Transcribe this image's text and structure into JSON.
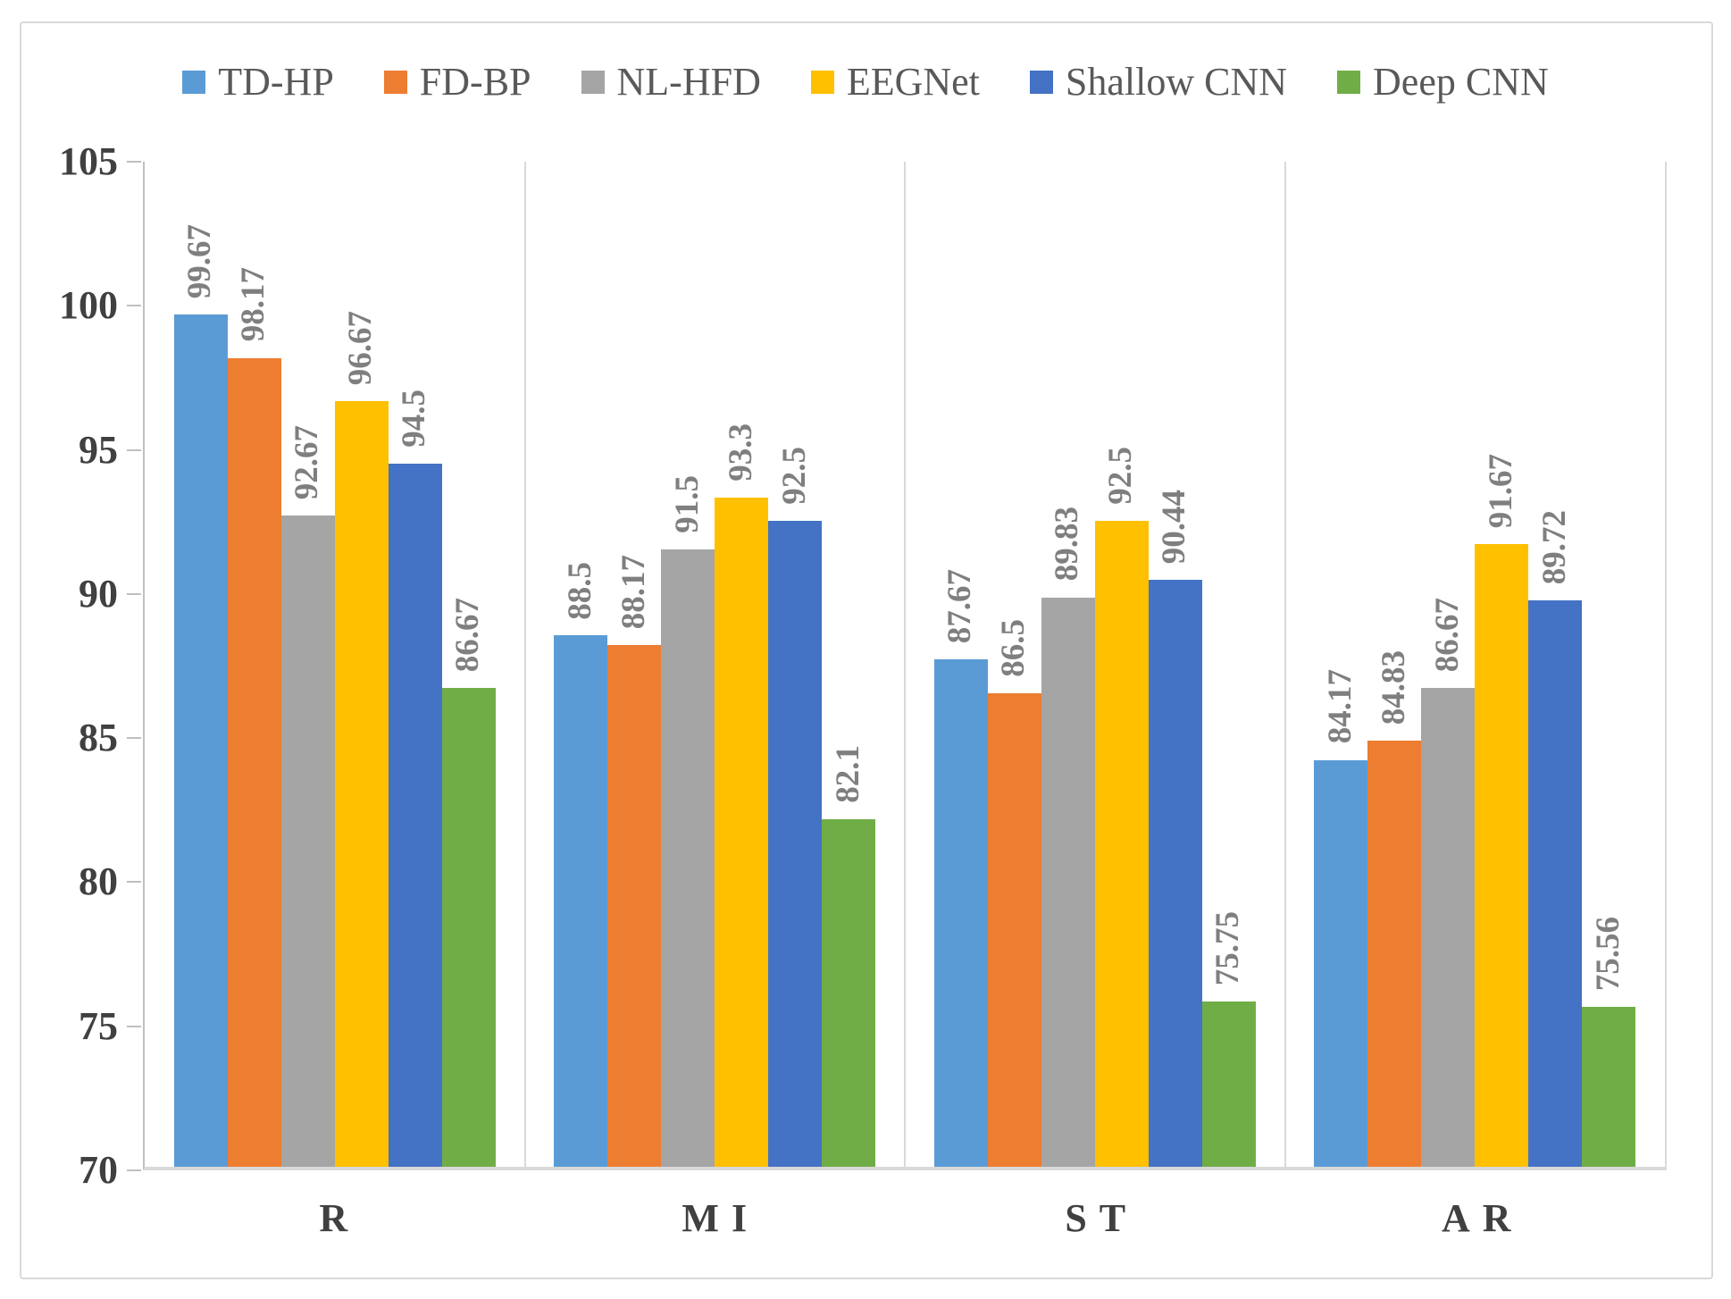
{
  "chart_data": {
    "type": "bar",
    "categories": [
      "R",
      "MI",
      "ST",
      "AR"
    ],
    "series": [
      {
        "name": "TD-HP",
        "color": "#5B9BD5",
        "values": [
          99.67,
          88.5,
          87.67,
          84.17
        ],
        "labels": [
          "99.67",
          "88.5",
          "87.67",
          "84.17"
        ]
      },
      {
        "name": "FD-BP",
        "color": "#ED7D31",
        "values": [
          98.17,
          88.17,
          86.5,
          84.83
        ],
        "labels": [
          "98.17",
          "88.17",
          "86.5",
          "84.83"
        ]
      },
      {
        "name": "NL-HFD",
        "color": "#A5A5A5",
        "values": [
          92.67,
          91.5,
          89.83,
          86.67
        ],
        "labels": [
          "92.67",
          "91.5",
          "89.83",
          "86.67"
        ]
      },
      {
        "name": "EEGNet",
        "color": "#FFC000",
        "values": [
          96.67,
          93.3,
          92.5,
          91.67
        ],
        "labels": [
          "96.67",
          "93.3",
          "92.5",
          "91.67"
        ]
      },
      {
        "name": "Shallow CNN",
        "color": "#4472C4",
        "values": [
          94.5,
          92.5,
          90.44,
          89.72
        ],
        "labels": [
          "94.5",
          "92.5",
          "90.44",
          "89.72"
        ]
      },
      {
        "name": "Deep CNN",
        "color": "#70AD47",
        "values": [
          86.67,
          82.1,
          75.75,
          75.56
        ],
        "labels": [
          "86.67",
          "82.1",
          "75.75",
          "75.56"
        ]
      }
    ],
    "title": "",
    "xlabel": "",
    "ylabel": "",
    "ylim": [
      70,
      105
    ],
    "y_tick_step": 5,
    "y_ticks": [
      "105",
      "100",
      "95",
      "90",
      "85",
      "80",
      "75",
      "70"
    ],
    "grid": "vertical category separators only",
    "legend_position": "top",
    "data_label_rotation": "vertical-bottom-to-top",
    "colors": {
      "axis_line": "#bfbfbf",
      "separator_line": "#d9d9d9",
      "baseline": "#d9d9d9",
      "frame_border": "#d9d9d9",
      "data_label_text": "#7f7f7f",
      "axis_label_text": "#404040",
      "legend_text": "#595959",
      "background": "#ffffff"
    }
  }
}
